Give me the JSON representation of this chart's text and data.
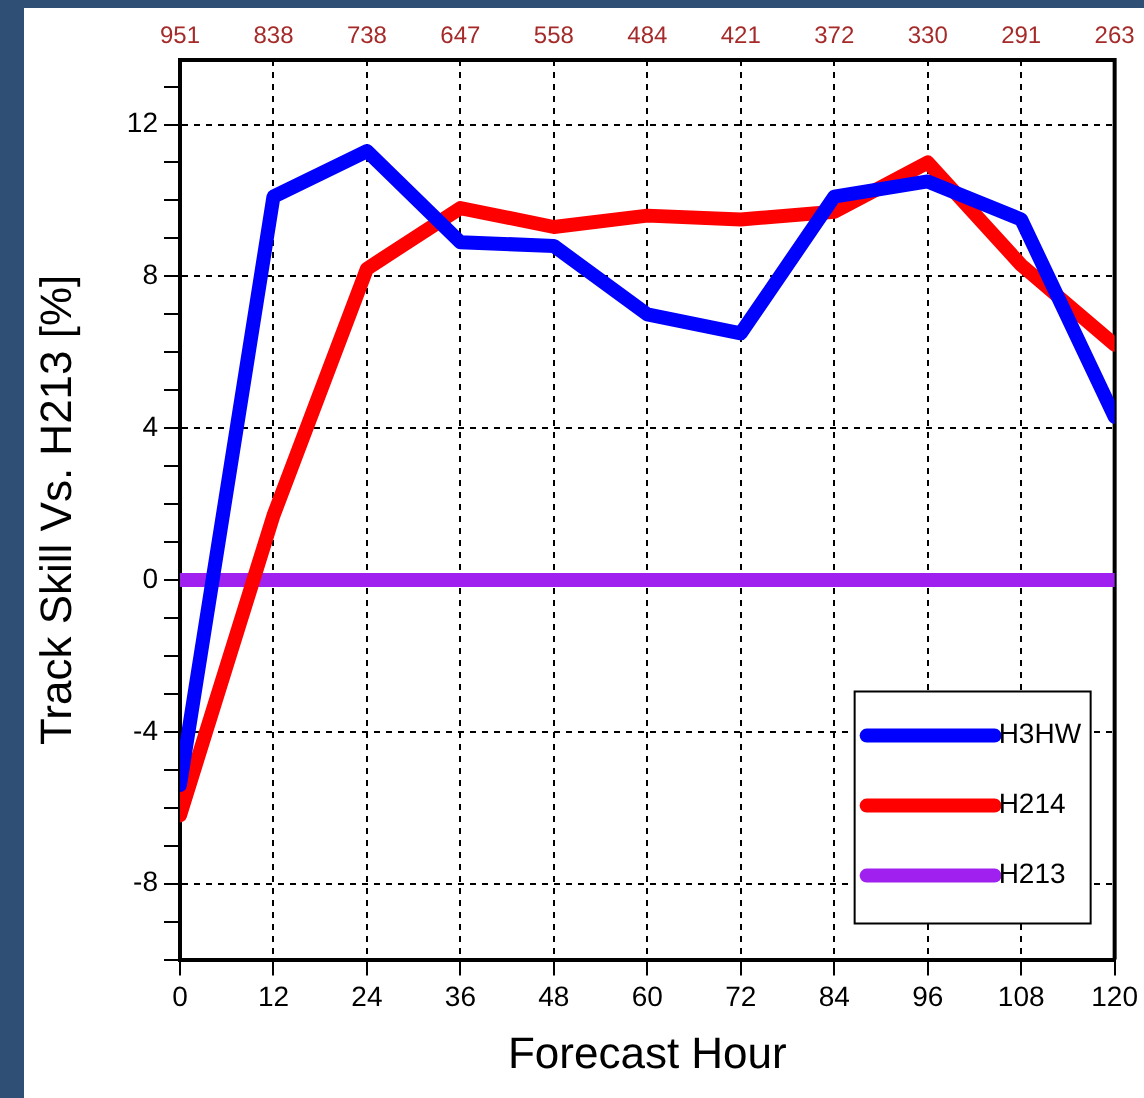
{
  "chart_data": {
    "type": "line",
    "xlabel": "Forecast Hour",
    "ylabel": "Track Skill Vs. H213 [%]",
    "x": [
      0,
      12,
      24,
      36,
      48,
      60,
      72,
      84,
      96,
      108,
      120
    ],
    "series": [
      {
        "name": "H3HW",
        "color": "#0000ff",
        "values": [
          -5.4,
          10.1,
          11.3,
          8.9,
          8.8,
          7.0,
          6.5,
          10.1,
          10.5,
          9.5,
          4.3
        ]
      },
      {
        "name": "H214",
        "color": "#ff0000",
        "values": [
          -6.2,
          1.7,
          8.2,
          9.8,
          9.3,
          9.6,
          9.5,
          9.7,
          11.0,
          8.3,
          6.2
        ]
      },
      {
        "name": "H213",
        "color": "#a020f0",
        "values": [
          0,
          0,
          0,
          0,
          0,
          0,
          0,
          0,
          0,
          0,
          0
        ]
      }
    ],
    "xlim": [
      0,
      120
    ],
    "xticks": [
      0,
      12,
      24,
      36,
      48,
      60,
      72,
      84,
      96,
      108,
      120
    ],
    "ylim": [
      -10,
      13.7
    ],
    "yticks": [
      {
        "value": -10,
        "label": null
      },
      {
        "value": -9,
        "label": null
      },
      -8,
      {
        "value": -7,
        "label": null
      },
      {
        "value": -6,
        "label": null
      },
      {
        "value": -5,
        "label": null
      },
      -4,
      {
        "value": -3,
        "label": null
      },
      {
        "value": -2,
        "label": null
      },
      {
        "value": -1,
        "label": null
      },
      0,
      {
        "value": 1,
        "label": null
      },
      {
        "value": 2,
        "label": null
      },
      {
        "value": 3,
        "label": null
      },
      4,
      {
        "value": 5,
        "label": null
      },
      {
        "value": 6,
        "label": null
      },
      {
        "value": 7,
        "label": null
      },
      8,
      {
        "value": 9,
        "label": null
      },
      {
        "value": 10,
        "label": null
      },
      {
        "value": 11,
        "label": null
      },
      12,
      {
        "value": 13,
        "label": null
      }
    ],
    "annotations": [
      "951",
      "838",
      "738",
      "647",
      "558",
      "484",
      "421",
      "372",
      "330",
      "291",
      "263"
    ],
    "grid": true,
    "legend": "bottom right",
    "marker": "none",
    "line_style": "solid"
  }
}
